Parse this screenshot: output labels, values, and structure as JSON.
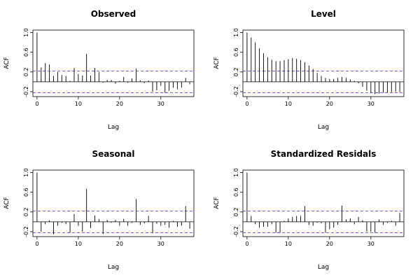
{
  "chart_data": [
    {
      "type": "bar",
      "title": "Observed",
      "xlabel": "Lag",
      "ylabel": "ACF",
      "xlim": [
        -1,
        38
      ],
      "ylim": [
        -0.3,
        1.05
      ],
      "x_ticks": [
        0,
        10,
        20,
        30
      ],
      "y_ticks": [
        -0.2,
        0.2,
        0.6,
        1.0
      ],
      "y_tick_labels": [
        "-0.2",
        "0.2",
        "0.6",
        "1.0"
      ],
      "confidence_bound": [
        -0.22,
        0.22
      ],
      "confidence_color": "#3333ee",
      "lags": [
        0,
        1,
        2,
        3,
        4,
        5,
        6,
        7,
        8,
        9,
        10,
        11,
        12,
        13,
        14,
        15,
        16,
        17,
        18,
        19,
        20,
        21,
        22,
        23,
        24,
        25,
        26,
        27,
        28,
        29,
        30,
        31,
        32,
        33,
        34,
        35,
        36,
        37
      ],
      "values": [
        1.0,
        0.29,
        0.38,
        0.35,
        0.12,
        0.2,
        0.14,
        0.12,
        0.02,
        0.28,
        0.16,
        0.13,
        0.57,
        0.13,
        0.28,
        0.2,
        -0.02,
        0.04,
        0.04,
        -0.04,
        0.02,
        0.1,
        -0.02,
        0.07,
        0.27,
        0.03,
        -0.03,
        0.03,
        -0.2,
        -0.17,
        -0.08,
        -0.22,
        -0.18,
        -0.12,
        -0.15,
        -0.12,
        0.08,
        -0.05
      ]
    },
    {
      "type": "bar",
      "title": "Level",
      "xlabel": "Lag",
      "ylabel": "ACF",
      "xlim": [
        -1,
        38
      ],
      "ylim": [
        -0.3,
        1.05
      ],
      "x_ticks": [
        0,
        10,
        20,
        30
      ],
      "y_ticks": [
        -0.2,
        0.2,
        0.6,
        1.0
      ],
      "y_tick_labels": [
        "-0.2",
        "0.2",
        "0.6",
        "1.0"
      ],
      "confidence_bound": [
        -0.22,
        0.22
      ],
      "confidence_color": "#3333ee",
      "lags": [
        0,
        1,
        2,
        3,
        4,
        5,
        6,
        7,
        8,
        9,
        10,
        11,
        12,
        13,
        14,
        15,
        16,
        17,
        18,
        19,
        20,
        21,
        22,
        23,
        24,
        25,
        26,
        27,
        28,
        29,
        30,
        31,
        32,
        33,
        34,
        35,
        36,
        37
      ],
      "values": [
        1.0,
        0.9,
        0.8,
        0.68,
        0.58,
        0.5,
        0.45,
        0.42,
        0.42,
        0.44,
        0.46,
        0.48,
        0.47,
        0.44,
        0.4,
        0.33,
        0.26,
        0.18,
        0.12,
        0.08,
        0.06,
        0.06,
        0.08,
        0.1,
        0.08,
        0.05,
        0.02,
        -0.03,
        -0.1,
        -0.18,
        -0.23,
        -0.25,
        -0.24,
        -0.22,
        -0.22,
        -0.21,
        -0.2,
        -0.2
      ]
    },
    {
      "type": "bar",
      "title": "Seasonal",
      "xlabel": "Lag",
      "ylabel": "ACF",
      "xlim": [
        -1,
        38
      ],
      "ylim": [
        -0.3,
        1.05
      ],
      "x_ticks": [
        0,
        10,
        20,
        30
      ],
      "y_ticks": [
        -0.2,
        0.2,
        0.6,
        1.0
      ],
      "y_tick_labels": [
        "-0.2",
        "0.2",
        "0.6",
        "1.0"
      ],
      "confidence_bound": [
        -0.22,
        0.22
      ],
      "confidence_color": "#3333ee",
      "lags": [
        0,
        1,
        2,
        3,
        4,
        5,
        6,
        7,
        8,
        9,
        10,
        11,
        12,
        13,
        14,
        15,
        16,
        17,
        18,
        19,
        20,
        21,
        22,
        23,
        24,
        25,
        26,
        27,
        28,
        29,
        30,
        31,
        32,
        33,
        34,
        35,
        36,
        37
      ],
      "values": [
        1.0,
        -0.2,
        -0.05,
        0.03,
        -0.25,
        -0.08,
        -0.02,
        -0.05,
        -0.22,
        0.16,
        -0.08,
        -0.2,
        0.67,
        -0.13,
        0.13,
        0.06,
        -0.25,
        0.04,
        -0.02,
        0.04,
        -0.08,
        0.06,
        -0.08,
        -0.02,
        0.46,
        -0.06,
        -0.03,
        0.12,
        -0.22,
        -0.04,
        -0.08,
        -0.06,
        -0.12,
        0.02,
        -0.1,
        -0.08,
        0.32,
        -0.14
      ]
    },
    {
      "type": "bar",
      "title": "Standardized Residals",
      "xlabel": "Lag",
      "ylabel": "ACF",
      "xlim": [
        -1,
        38
      ],
      "ylim": [
        -0.3,
        1.05
      ],
      "x_ticks": [
        0,
        10,
        20,
        30
      ],
      "y_ticks": [
        -0.2,
        0.2,
        0.6,
        1.0
      ],
      "y_tick_labels": [
        "-0.2",
        "0.2",
        "0.6",
        "1.0"
      ],
      "confidence_bound": [
        -0.22,
        0.22
      ],
      "confidence_color": "#3333ee",
      "lags": [
        0,
        1,
        2,
        3,
        4,
        5,
        6,
        7,
        8,
        9,
        10,
        11,
        12,
        13,
        14,
        15,
        16,
        17,
        18,
        19,
        20,
        21,
        22,
        23,
        24,
        25,
        26,
        27,
        28,
        29,
        30,
        31,
        32,
        33,
        34,
        35,
        36,
        37
      ],
      "values": [
        1.0,
        0.12,
        -0.05,
        -0.12,
        -0.1,
        -0.1,
        -0.05,
        -0.22,
        -0.22,
        0.02,
        0.07,
        0.1,
        0.12,
        0.12,
        0.32,
        -0.06,
        -0.08,
        -0.02,
        -0.03,
        -0.22,
        -0.15,
        -0.12,
        -0.06,
        0.33,
        0.05,
        0.07,
        -0.05,
        0.1,
        0.03,
        -0.2,
        -0.2,
        -0.22,
        0.05,
        -0.06,
        -0.02,
        0.02,
        -0.08,
        0.18
      ]
    }
  ]
}
